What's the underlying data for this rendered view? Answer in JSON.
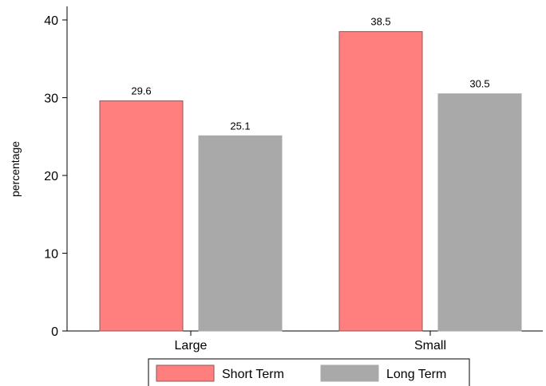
{
  "chart_data": {
    "type": "bar",
    "categories": [
      "Large",
      "Small"
    ],
    "series": [
      {
        "name": "Short Term",
        "values": [
          29.6,
          38.5
        ],
        "color": "#ff7f7f",
        "stroke": "#8a5a5a"
      },
      {
        "name": "Long Term",
        "values": [
          25.1,
          30.5
        ],
        "color": "#a9a9a9",
        "stroke": "#a9a9a9"
      }
    ],
    "data_labels": [
      [
        "29.6",
        "38.5"
      ],
      [
        "25.1",
        "30.5"
      ]
    ],
    "ylabel": "percentage",
    "xlabel": "",
    "title": "",
    "ylim": [
      0,
      40
    ],
    "yticks": [
      0,
      10,
      20,
      30,
      40
    ],
    "ytick_labels": [
      "0",
      "10",
      "20",
      "30",
      "40"
    ],
    "grid": false,
    "legend_position": "bottom"
  }
}
